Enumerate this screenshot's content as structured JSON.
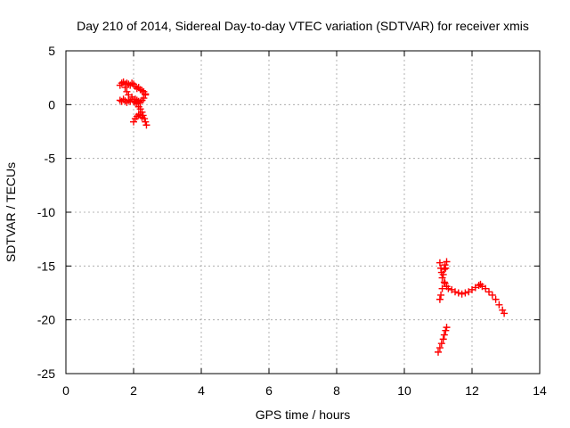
{
  "chart_data": {
    "type": "scatter",
    "title": "Day 210 of 2014, Sidereal Day-to-day VTEC variation (SDTVAR) for receiver xmis",
    "xlabel": "GPS time / hours",
    "ylabel": "SDTVAR / TECUs",
    "xlim": [
      0,
      14
    ],
    "ylim": [
      -25,
      5
    ],
    "xticks": [
      0,
      2,
      4,
      6,
      8,
      10,
      12,
      14
    ],
    "yticks": [
      5,
      0,
      -5,
      -10,
      -15,
      -20,
      -25
    ],
    "grid": true,
    "marker": "+",
    "series_color": "#ff0000",
    "series": [
      {
        "name": "SDTVAR",
        "points": [
          [
            1.6,
            0.4
          ],
          [
            1.65,
            0.3
          ],
          [
            1.7,
            0.5
          ],
          [
            1.75,
            0.35
          ],
          [
            1.8,
            0.2
          ],
          [
            1.85,
            0.4
          ],
          [
            1.9,
            0.3
          ],
          [
            1.95,
            0.5
          ],
          [
            2.0,
            0.3
          ],
          [
            2.05,
            0.2
          ],
          [
            2.1,
            0.4
          ],
          [
            2.15,
            0.3
          ],
          [
            2.2,
            0.2
          ],
          [
            2.25,
            0.4
          ],
          [
            2.3,
            0.6
          ],
          [
            2.35,
            0.9
          ],
          [
            1.6,
            1.8
          ],
          [
            1.65,
            2.0
          ],
          [
            1.7,
            2.1
          ],
          [
            1.75,
            1.9
          ],
          [
            1.8,
            2.0
          ],
          [
            1.85,
            1.9
          ],
          [
            1.9,
            1.8
          ],
          [
            1.95,
            2.0
          ],
          [
            2.0,
            1.9
          ],
          [
            2.05,
            1.7
          ],
          [
            2.1,
            1.5
          ],
          [
            2.15,
            1.6
          ],
          [
            2.2,
            1.4
          ],
          [
            2.25,
            1.3
          ],
          [
            2.3,
            1.2
          ],
          [
            2.35,
            1.0
          ],
          [
            1.75,
            1.6
          ],
          [
            1.8,
            1.2
          ],
          [
            1.85,
            0.9
          ],
          [
            1.95,
            0.7
          ],
          [
            2.05,
            0.5
          ],
          [
            2.1,
            0.1
          ],
          [
            2.15,
            -0.2
          ],
          [
            2.2,
            -0.4
          ],
          [
            2.25,
            -0.7
          ],
          [
            2.28,
            -1.0
          ],
          [
            2.32,
            -1.3
          ],
          [
            2.35,
            -1.6
          ],
          [
            2.38,
            -1.9
          ],
          [
            2.0,
            -1.6
          ],
          [
            2.05,
            -1.3
          ],
          [
            2.1,
            -1.1
          ],
          [
            2.15,
            -0.9
          ],
          [
            2.2,
            -1.0
          ],
          [
            2.25,
            -1.2
          ],
          [
            11.05,
            -14.7
          ],
          [
            11.08,
            -15.2
          ],
          [
            11.1,
            -15.6
          ],
          [
            11.12,
            -16.1
          ],
          [
            11.15,
            -15.8
          ],
          [
            11.18,
            -15.3
          ],
          [
            11.2,
            -14.9
          ],
          [
            11.22,
            -15.2
          ],
          [
            11.25,
            -14.6
          ],
          [
            11.18,
            -16.5
          ],
          [
            11.12,
            -17.1
          ],
          [
            11.08,
            -17.7
          ],
          [
            11.05,
            -18.1
          ],
          [
            11.2,
            -16.6
          ],
          [
            11.25,
            -16.9
          ],
          [
            11.3,
            -17.1
          ],
          [
            11.4,
            -17.2
          ],
          [
            11.5,
            -17.4
          ],
          [
            11.6,
            -17.5
          ],
          [
            11.7,
            -17.6
          ],
          [
            11.8,
            -17.5
          ],
          [
            11.9,
            -17.4
          ],
          [
            12.0,
            -17.2
          ],
          [
            12.1,
            -17.0
          ],
          [
            12.2,
            -16.8
          ],
          [
            12.25,
            -16.7
          ],
          [
            12.3,
            -16.9
          ],
          [
            12.4,
            -17.1
          ],
          [
            12.5,
            -17.4
          ],
          [
            12.6,
            -17.7
          ],
          [
            12.7,
            -18.1
          ],
          [
            12.8,
            -18.6
          ],
          [
            12.9,
            -19.1
          ],
          [
            12.95,
            -19.4
          ],
          [
            11.0,
            -23.0
          ],
          [
            11.05,
            -22.6
          ],
          [
            11.1,
            -22.2
          ],
          [
            11.15,
            -21.8
          ],
          [
            11.18,
            -21.4
          ],
          [
            11.22,
            -21.0
          ],
          [
            11.25,
            -20.7
          ]
        ]
      }
    ]
  }
}
